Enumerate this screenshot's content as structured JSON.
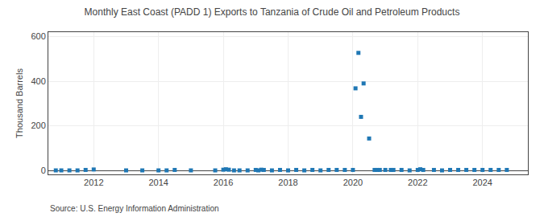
{
  "chart_data": {
    "type": "scatter",
    "title": "Monthly East Coast (PADD 1) Exports to Tanzania of Crude Oil and Petroleum Products",
    "ylabel": "Thousand Barrels",
    "annotations": [
      "Source: U.S. Energy Information Administration"
    ],
    "marker": "square",
    "grid": true,
    "x": [
      2010.83,
      2011.0,
      2011.25,
      2011.5,
      2011.75,
      2012.0,
      2013.0,
      2013.5,
      2014.0,
      2014.25,
      2014.5,
      2015.0,
      2015.75,
      2016.0,
      2016.08,
      2016.17,
      2016.33,
      2016.5,
      2016.75,
      2017.0,
      2017.08,
      2017.17,
      2017.25,
      2017.5,
      2017.75,
      2018.0,
      2018.25,
      2018.5,
      2018.75,
      2019.0,
      2019.25,
      2019.5,
      2019.75,
      2020.0,
      2020.08,
      2020.17,
      2020.25,
      2020.33,
      2020.5,
      2020.67,
      2020.75,
      2020.83,
      2021.0,
      2021.17,
      2021.25,
      2021.5,
      2021.75,
      2022.0,
      2022.08,
      2022.17,
      2022.5,
      2022.75,
      2023.0,
      2023.25,
      2023.5,
      2023.75,
      2024.0,
      2024.25,
      2024.5,
      2024.75
    ],
    "values": [
      0,
      0,
      0,
      0,
      2,
      4,
      0,
      0,
      0,
      0,
      2,
      0,
      0,
      3,
      5,
      3,
      0,
      0,
      0,
      2,
      0,
      3,
      2,
      0,
      2,
      0,
      2,
      0,
      2,
      0,
      2,
      2,
      2,
      2,
      368,
      527,
      240,
      390,
      143,
      2,
      2,
      2,
      2,
      2,
      2,
      2,
      0,
      2,
      5,
      2,
      2,
      0,
      2,
      2,
      2,
      2,
      2,
      2,
      2,
      2
    ],
    "xlim": [
      2010.6,
      2025.4
    ],
    "xticks": [
      2012,
      2014,
      2016,
      2018,
      2020,
      2022,
      2024
    ],
    "ylim": [
      -18,
      620
    ],
    "yticks": [
      0,
      200,
      400,
      600
    ]
  }
}
